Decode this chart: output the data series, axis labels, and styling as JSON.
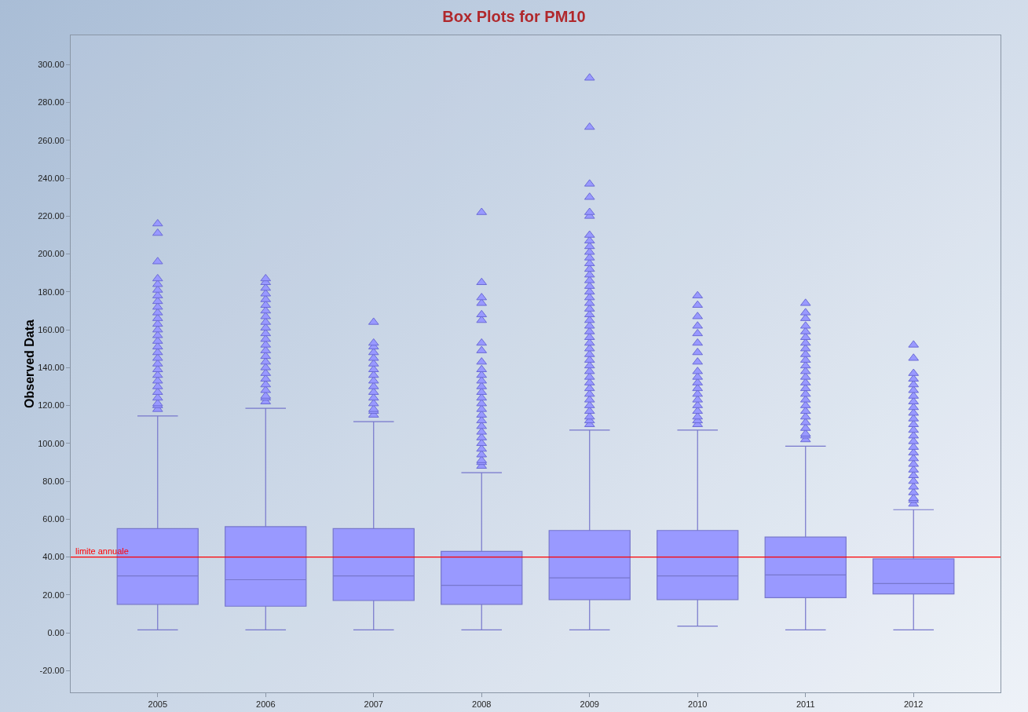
{
  "chart_data": {
    "type": "box",
    "title": "Box Plots for PM10",
    "ylabel": "Observed Data",
    "categories": [
      "2005",
      "2006",
      "2007",
      "2008",
      "2009",
      "2010",
      "2011",
      "2012"
    ],
    "series": [
      {
        "color": "#9999ff",
        "boxes": [
          {
            "low": 1.5,
            "q1": 15,
            "median": 30,
            "q3": 55,
            "high": 114.5,
            "outliers": [
              118,
              120,
              121,
              124,
              127,
              130,
              133,
              136,
              139,
              142,
              145,
              148,
              151,
              154,
              157,
              160,
              163,
              166,
              169,
              172,
              175,
              178,
              181,
              184,
              187,
              196,
              211,
              216
            ]
          },
          {
            "low": 1.5,
            "q1": 14,
            "median": 28,
            "q3": 56,
            "high": 118.5,
            "outliers": [
              122,
              124,
              125,
              128,
              131,
              134,
              137,
              140,
              143,
              146,
              149,
              152,
              155,
              158,
              161,
              164,
              167,
              170,
              173,
              176,
              179,
              182,
              185,
              187
            ]
          },
          {
            "low": 1.5,
            "q1": 17,
            "median": 30,
            "q3": 55,
            "high": 111.5,
            "outliers": [
              115,
              117,
              118,
              121,
              124,
              127,
              130,
              133,
              136,
              139,
              142,
              145,
              148,
              151,
              153,
              164
            ]
          },
          {
            "low": 1.5,
            "q1": 15,
            "median": 25,
            "q3": 43,
            "high": 84.5,
            "outliers": [
              88,
              90,
              91,
              94,
              97,
              100,
              103,
              106,
              109,
              112,
              115,
              118,
              121,
              124,
              127,
              130,
              133,
              136,
              139,
              143,
              149,
              153,
              165,
              168,
              174,
              177,
              185,
              222
            ]
          },
          {
            "low": 1.5,
            "q1": 17.5,
            "median": 29,
            "q3": 54,
            "high": 107,
            "outliers": [
              110,
              112,
              114,
              117,
              120,
              123,
              126,
              129,
              132,
              135,
              138,
              141,
              144,
              147,
              150,
              153,
              156,
              159,
              162,
              165,
              168,
              171,
              174,
              177,
              180,
              183,
              186,
              189,
              192,
              195,
              198,
              201,
              204,
              207,
              210,
              220,
              222,
              230,
              237,
              267,
              293
            ]
          },
          {
            "low": 3.5,
            "q1": 17.5,
            "median": 30,
            "q3": 54,
            "high": 107,
            "outliers": [
              110,
              112,
              114,
              117,
              120,
              123,
              126,
              129,
              132,
              135,
              138,
              143,
              148,
              153,
              158,
              162,
              167,
              173,
              178
            ]
          },
          {
            "low": 1.5,
            "q1": 18.5,
            "median": 30.5,
            "q3": 50.5,
            "high": 98.5,
            "outliers": [
              102,
              104,
              105,
              108,
              111,
              114,
              117,
              120,
              123,
              126,
              129,
              132,
              135,
              138,
              141,
              144,
              147,
              150,
              153,
              156,
              159,
              162,
              166,
              169,
              174
            ]
          },
          {
            "low": 1.5,
            "q1": 20.5,
            "median": 26,
            "q3": 39,
            "high": 65,
            "outliers": [
              68,
              70,
              71,
              74,
              77,
              80,
              83,
              86,
              89,
              92,
              95,
              98,
              101,
              104,
              107,
              110,
              113,
              116,
              119,
              122,
              125,
              128,
              131,
              134,
              137,
              145,
              152
            ]
          }
        ]
      }
    ],
    "ylim": [
      -31.5,
      315.5
    ],
    "yticks": [
      {
        "value": -20,
        "label": "-20.00"
      },
      {
        "value": 0,
        "label": "0.00"
      },
      {
        "value": 20,
        "label": "20.00"
      },
      {
        "value": 40,
        "label": "40.00"
      },
      {
        "value": 60,
        "label": "60.00"
      },
      {
        "value": 80,
        "label": "80.00"
      },
      {
        "value": 100,
        "label": "100.00"
      },
      {
        "value": 120,
        "label": "120.00"
      },
      {
        "value": 140,
        "label": "140.00"
      },
      {
        "value": 160,
        "label": "160.00"
      },
      {
        "value": 180,
        "label": "180.00"
      },
      {
        "value": 200,
        "label": "200.00"
      },
      {
        "value": 220,
        "label": "220.00"
      },
      {
        "value": 240,
        "label": "240.00"
      },
      {
        "value": 260,
        "label": "260.00"
      },
      {
        "value": 280,
        "label": "280.00"
      },
      {
        "value": 300,
        "label": "300.00"
      }
    ],
    "ref_lines": [
      {
        "axis": "y",
        "value": 40,
        "label": "limite annuale",
        "color": "#ff0000"
      }
    ],
    "marker": "triangle"
  }
}
